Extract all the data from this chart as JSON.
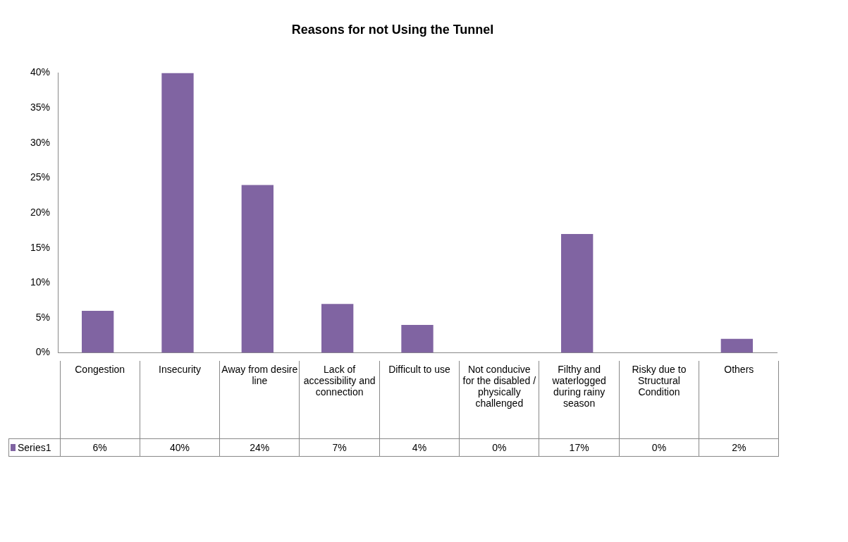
{
  "chart_data": {
    "type": "bar",
    "title": "Reasons for not Using the Tunnel",
    "categories": [
      "Congestion",
      "Insecurity",
      "Away from desire line",
      "Lack of accessibility and connection",
      "Difficult to use",
      "Not conducive for the disabled / physically challenged",
      "Filthy and waterlogged during rainy season",
      "Risky due to Structural Condition",
      "Others"
    ],
    "series": [
      {
        "name": "Series1",
        "color": "#8064a2",
        "values": [
          6,
          40,
          24,
          7,
          4,
          0,
          17,
          0,
          2
        ],
        "value_labels": [
          "6%",
          "40%",
          "24%",
          "7%",
          "4%",
          "0%",
          "17%",
          "0%",
          "2%"
        ]
      }
    ],
    "ylim": [
      0,
      40
    ],
    "yticks": [
      {
        "value": 0,
        "label": "0%"
      },
      {
        "value": 5,
        "label": "5%"
      },
      {
        "value": 10,
        "label": "10%"
      },
      {
        "value": 15,
        "label": "15%"
      },
      {
        "value": 20,
        "label": "20%"
      },
      {
        "value": 25,
        "label": "25%"
      },
      {
        "value": 30,
        "label": "30%"
      },
      {
        "value": 35,
        "label": "35%"
      },
      {
        "value": 40,
        "label": "40%"
      }
    ]
  }
}
